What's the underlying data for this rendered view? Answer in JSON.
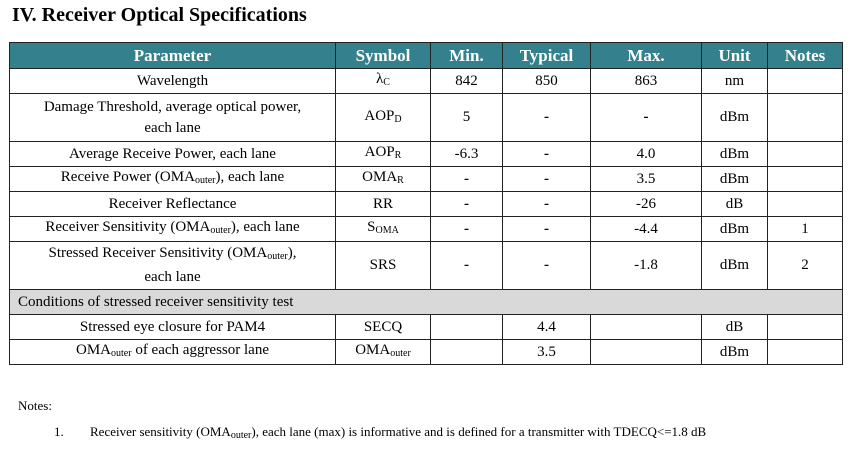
{
  "section_title": "IV. Receiver Optical Specifications",
  "table": {
    "headers": [
      "Parameter",
      "Symbol",
      "Min.",
      "Typical",
      "Max.",
      "Unit",
      "Notes"
    ],
    "rows": [
      {
        "param": [
          "Wavelength"
        ],
        "symbol": {
          "main": "λ",
          "sub": "C"
        },
        "min": "842",
        "typ": "850",
        "max": "863",
        "unit": "nm",
        "notes": ""
      },
      {
        "param": [
          "Damage Threshold, average optical power,",
          "each lane"
        ],
        "symbol": {
          "main": "AOP",
          "sub": "D"
        },
        "min": "5",
        "typ": "-",
        "max": "-",
        "unit": "dBm",
        "notes": ""
      },
      {
        "param": [
          "Average Receive Power, each lane"
        ],
        "symbol": {
          "main": "AOP",
          "sub": "R"
        },
        "min": "-6.3",
        "typ": "-",
        "max": "4.0",
        "unit": "dBm",
        "notes": ""
      },
      {
        "param": [
          "Receive Power (OMA",
          "outer",
          "), each lane"
        ],
        "symbol": {
          "main": "OMA",
          "sub": "R"
        },
        "min": "-",
        "typ": "-",
        "max": "3.5",
        "unit": "dBm",
        "notes": ""
      },
      {
        "param": [
          "Receiver Reflectance"
        ],
        "symbol": {
          "main": "RR",
          "sub": ""
        },
        "min": "-",
        "typ": "-",
        "max": "-26",
        "unit": "dB",
        "notes": ""
      },
      {
        "param": [
          "Receiver Sensitivity (OMA",
          "outer",
          "), each lane"
        ],
        "symbol": {
          "main": "S",
          "sub": "OMA"
        },
        "min": "-",
        "typ": "-",
        "max": "-4.4",
        "unit": "dBm",
        "notes": "1"
      },
      {
        "param": [
          "Stressed Receiver Sensitivity (OMA",
          "outer",
          "),",
          "each lane"
        ],
        "symbol": {
          "main": "SRS",
          "sub": ""
        },
        "min": "-",
        "typ": "-",
        "max": "-1.8",
        "unit": "dBm",
        "notes": "2"
      }
    ],
    "conditions_header": "Conditions of stressed receiver sensitivity test",
    "condition_rows": [
      {
        "param": [
          "Stressed eye closure for PAM4"
        ],
        "symbol": {
          "main": "SECQ",
          "sub": ""
        },
        "min": "",
        "typ": "4.4",
        "max": "",
        "unit": "dB",
        "notes": ""
      },
      {
        "param": [
          "OMA",
          "outer",
          " of each aggressor lane"
        ],
        "symbol": {
          "main": "OMA",
          "sub": "outer"
        },
        "min": "",
        "typ": "3.5",
        "max": "",
        "unit": "dBm",
        "notes": ""
      }
    ]
  },
  "notes": {
    "label": "Notes:",
    "items": [
      {
        "number": "1.",
        "text": [
          "Receiver sensitivity (OMA",
          "outer",
          "), each lane (max) is informative and is defined for a transmitter with TDECQ<=1.8 dB"
        ]
      }
    ]
  }
}
